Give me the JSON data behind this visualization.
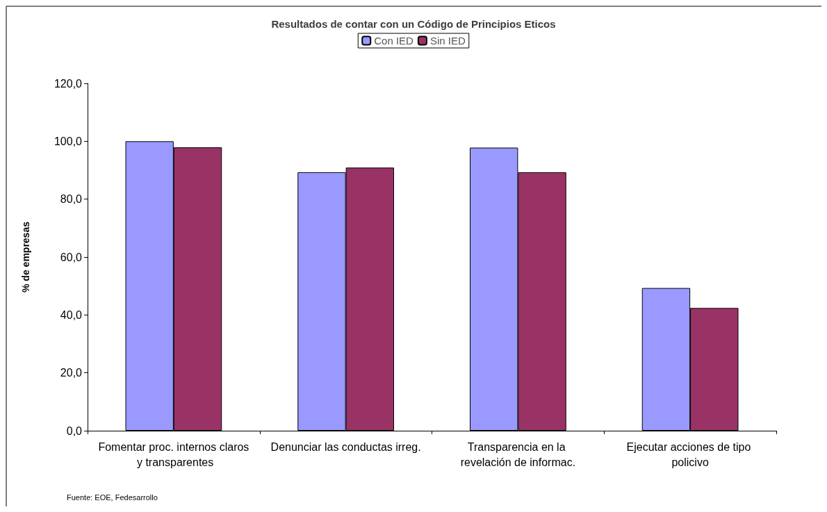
{
  "chart_data": {
    "type": "bar",
    "title": "Resultados de contar con un Código de Principios Eticos",
    "ylabel": "% de empresas",
    "categories": [
      "Fomentar proc. internos claros y transparentes",
      "Denunciar las conductas irreg.",
      "Transparencia en la revelación de informac.",
      "Ejecutar acciones de tipo policivo"
    ],
    "series": [
      {
        "name": "Con IED",
        "color": "#9999ff",
        "values": [
          100,
          89.3,
          97.8,
          49.3
        ]
      },
      {
        "name": "Sin IED",
        "color": "#993366",
        "values": [
          97.9,
          90.9,
          89.3,
          42.4
        ]
      }
    ],
    "ylim": [
      0,
      120
    ],
    "yticks": [
      {
        "value": 0,
        "label": "0,0"
      },
      {
        "value": 20,
        "label": "20,0"
      },
      {
        "value": 40,
        "label": "40,0"
      },
      {
        "value": 60,
        "label": "60,0"
      },
      {
        "value": 80,
        "label": "80,0"
      },
      {
        "value": 100,
        "label": "100,0"
      },
      {
        "value": 120,
        "label": "120,0"
      }
    ],
    "grid": false,
    "legend": "top",
    "annotations": [
      "Fuente: EOE, Fedesarrollo"
    ]
  }
}
